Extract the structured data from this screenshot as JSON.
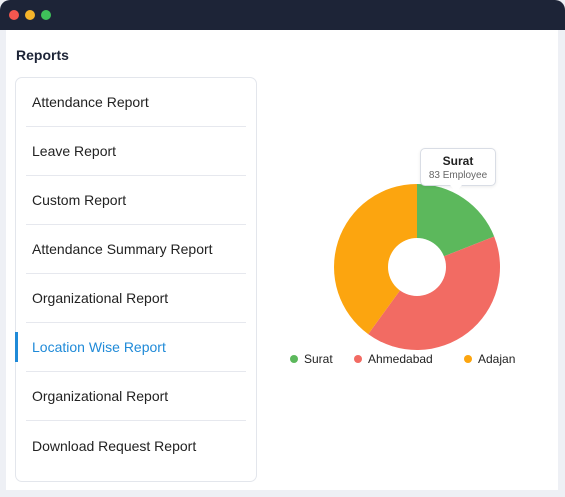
{
  "window": {
    "title": ""
  },
  "reports": {
    "title": "Reports",
    "items": [
      {
        "label": "Attendance Report"
      },
      {
        "label": "Leave Report"
      },
      {
        "label": "Custom Report"
      },
      {
        "label": "Attendance Summary Report"
      },
      {
        "label": "Organizational Report"
      },
      {
        "label": "Location Wise Report"
      },
      {
        "label": "Organizational Report"
      },
      {
        "label": "Download Request Report"
      }
    ],
    "active_index": 5
  },
  "tooltip": {
    "title": "Surat",
    "subtitle": "83 Employee"
  },
  "legend": [
    {
      "label": "Surat",
      "color": "#5cb85c"
    },
    {
      "label": "Ahmedabad",
      "color": "#f26b63"
    },
    {
      "label": "Adajan",
      "color": "#fca50f"
    }
  ],
  "colors": {
    "accent": "#1f8ad8",
    "titlebar": "#1d2437",
    "surat": "#5cb85c",
    "ahmedabad": "#f26b63",
    "adajan": "#fca50f"
  },
  "chart_data": {
    "type": "pie",
    "labels": [
      "Surat",
      "Ahmedabad",
      "Adajan"
    ],
    "values": [
      0.19,
      0.41,
      0.4
    ],
    "colors": [
      "#5cb85c",
      "#f26b63",
      "#fca50f"
    ],
    "donut": true
  }
}
